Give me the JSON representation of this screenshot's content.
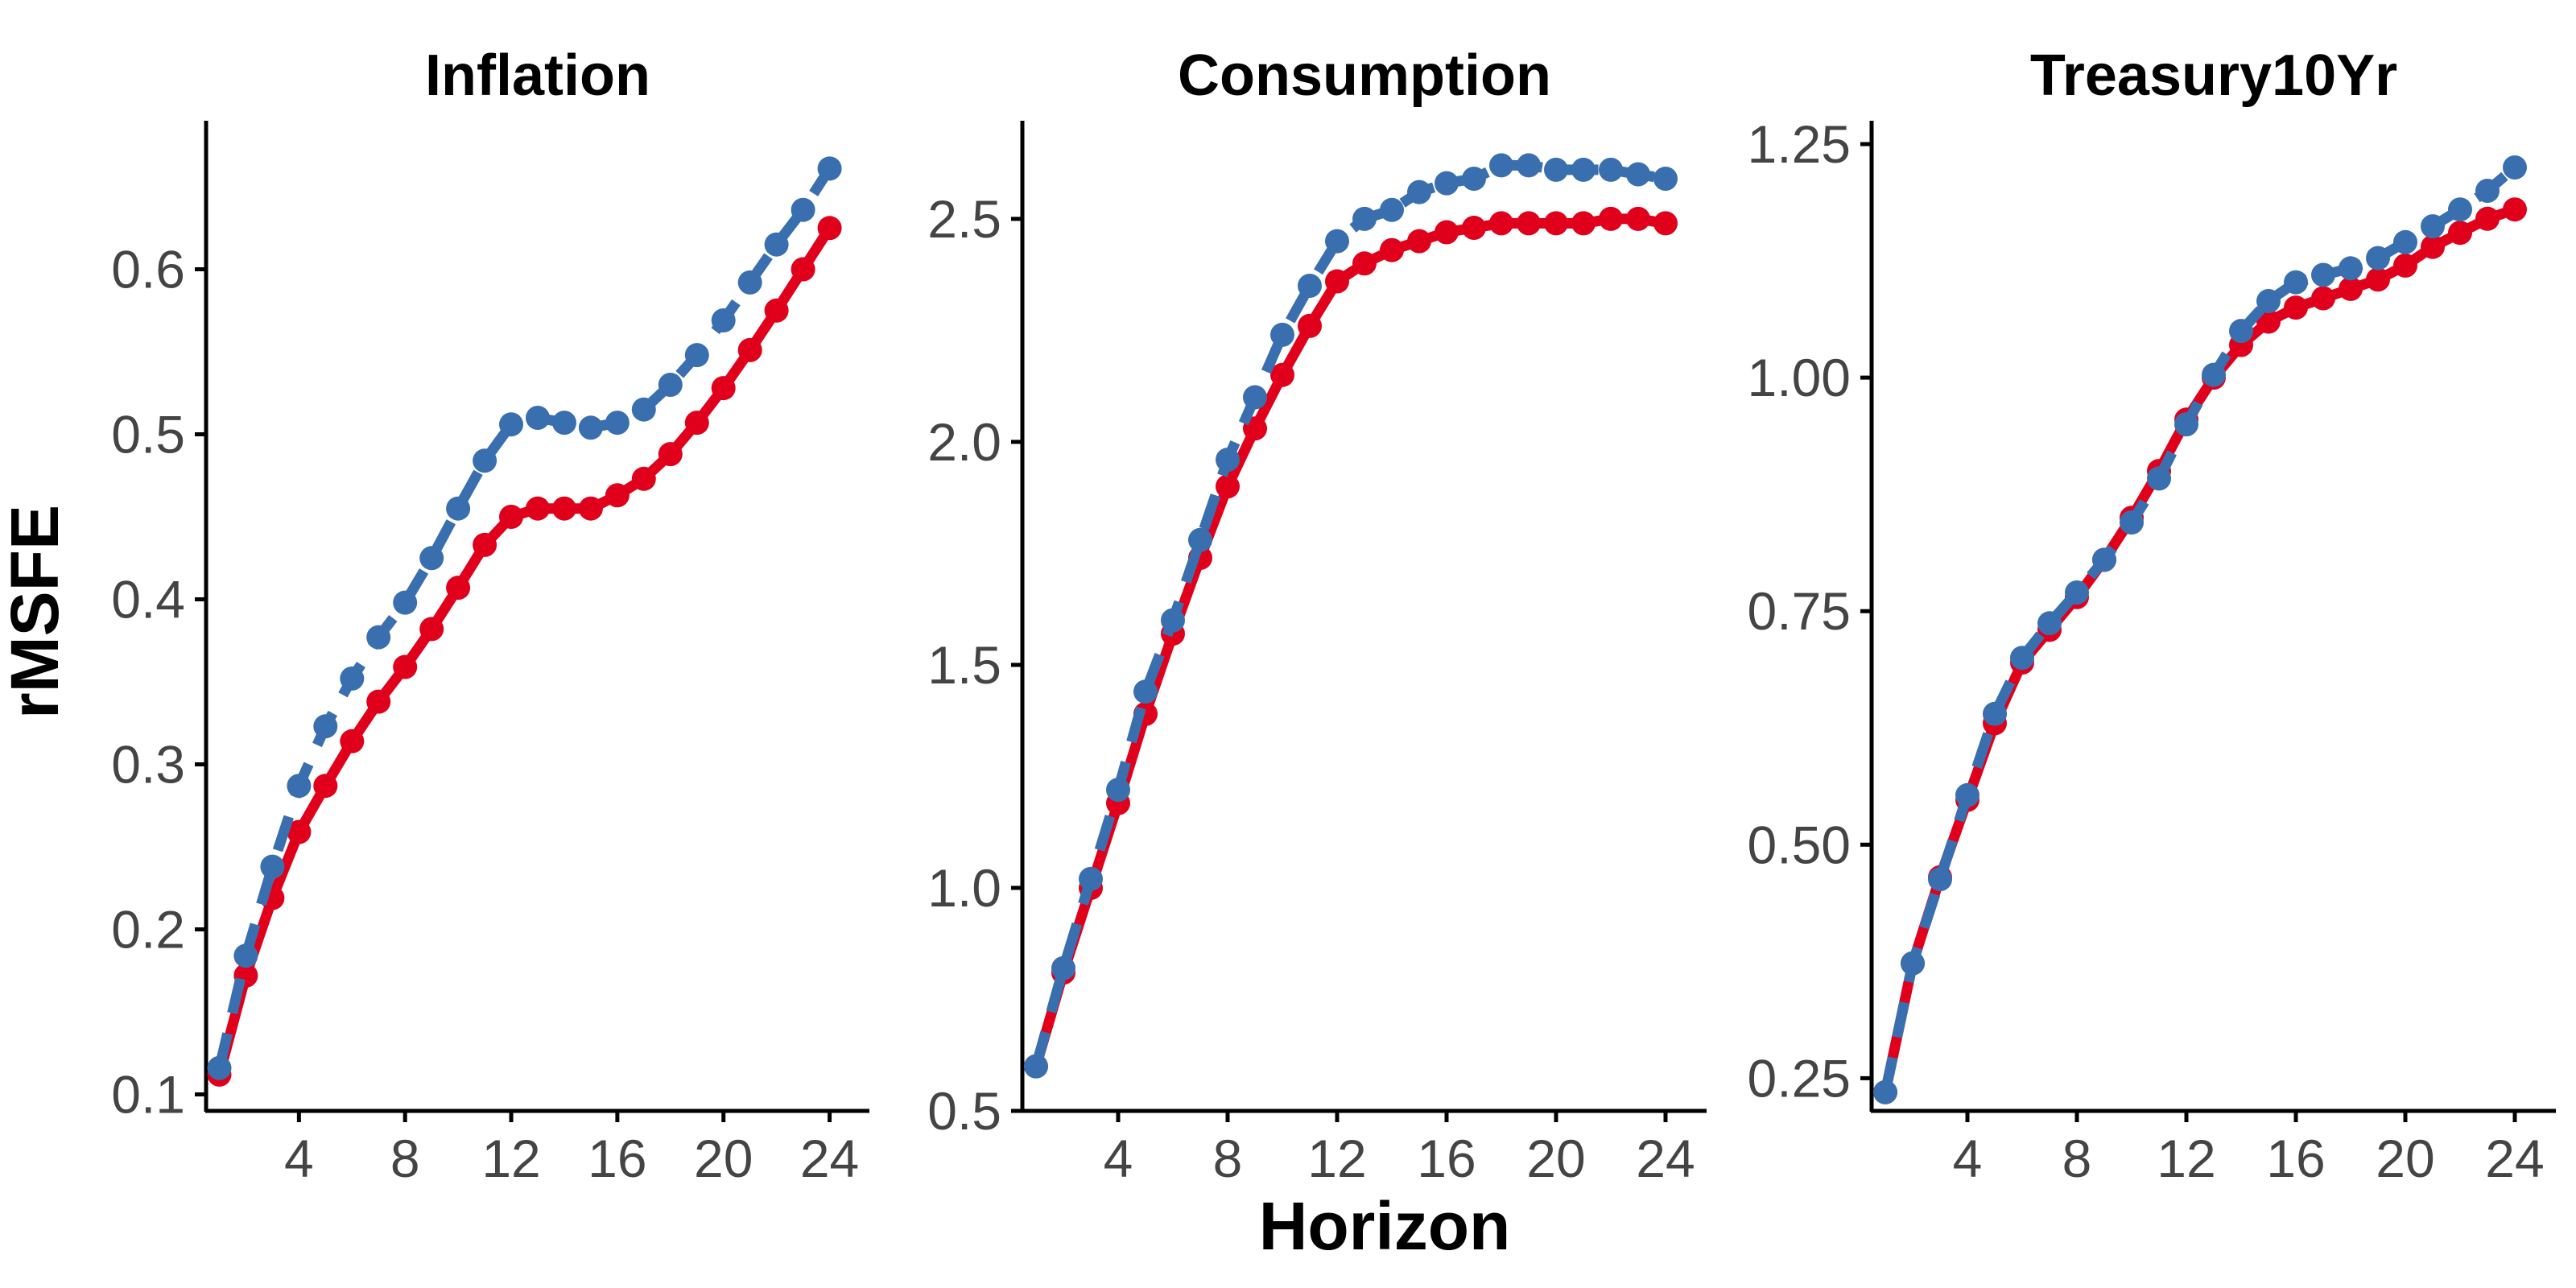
{
  "figure": {
    "ylabel": "rMSFE",
    "xlabel": "Horizon"
  },
  "colors": {
    "red": "#E0001B",
    "blue": "#3A6FAF",
    "axis": "#000000",
    "tick_text": "#444444"
  },
  "chart_data": [
    {
      "type": "line",
      "title": "Inflation",
      "xlabel": "Horizon",
      "ylabel": "rMSFE",
      "xlim": [
        0.5,
        25.5
      ],
      "ylim": [
        0.09,
        0.69
      ],
      "xticks": [
        4,
        8,
        12,
        16,
        20,
        24
      ],
      "xtick_labels": [
        "4",
        "8",
        "12",
        "16",
        "20",
        "24"
      ],
      "yticks": [
        0.1,
        0.2,
        0.3,
        0.4,
        0.5,
        0.6
      ],
      "ytick_labels": [
        "0.1",
        "0.2",
        "0.3",
        "0.4",
        "0.5",
        "0.6"
      ],
      "grid": false,
      "x": [
        1,
        2,
        3,
        4,
        5,
        6,
        7,
        8,
        9,
        10,
        11,
        12,
        13,
        14,
        15,
        16,
        17,
        18,
        19,
        20,
        21,
        22,
        23,
        24
      ],
      "series": [
        {
          "color": "#E0001B",
          "line_style": "solid",
          "values": [
            0.112,
            0.172,
            0.219,
            0.259,
            0.287,
            0.314,
            0.338,
            0.359,
            0.382,
            0.407,
            0.433,
            0.45,
            0.455,
            0.455,
            0.455,
            0.463,
            0.473,
            0.488,
            0.507,
            0.528,
            0.551,
            0.575,
            0.6,
            0.625
          ]
        },
        {
          "color": "#3A6FAF",
          "line_style": "dashed",
          "values": [
            0.116,
            0.184,
            0.238,
            0.287,
            0.323,
            0.352,
            0.377,
            0.398,
            0.425,
            0.455,
            0.484,
            0.506,
            0.51,
            0.507,
            0.504,
            0.507,
            0.515,
            0.53,
            0.548,
            0.569,
            0.592,
            0.615,
            0.636,
            0.661
          ]
        }
      ]
    },
    {
      "type": "line",
      "title": "Consumption",
      "xlabel": "Horizon",
      "ylabel": "rMSFE",
      "xlim": [
        0.5,
        25.5
      ],
      "ylim": [
        0.5,
        2.72
      ],
      "xticks": [
        4,
        8,
        12,
        16,
        20,
        24
      ],
      "xtick_labels": [
        "4",
        "8",
        "12",
        "16",
        "20",
        "24"
      ],
      "yticks": [
        0.5,
        1.0,
        1.5,
        2.0,
        2.5
      ],
      "ytick_labels": [
        "0.5",
        "1.0",
        "1.5",
        "2.0",
        "2.5"
      ],
      "grid": false,
      "x": [
        1,
        2,
        3,
        4,
        5,
        6,
        7,
        8,
        9,
        10,
        11,
        12,
        13,
        14,
        15,
        16,
        17,
        18,
        19,
        20,
        21,
        22,
        23,
        24
      ],
      "series": [
        {
          "color": "#E0001B",
          "line_style": "solid",
          "values": [
            0.6,
            0.81,
            1.0,
            1.19,
            1.39,
            1.57,
            1.74,
            1.9,
            2.03,
            2.15,
            2.26,
            2.36,
            2.4,
            2.43,
            2.45,
            2.47,
            2.48,
            2.49,
            2.49,
            2.49,
            2.49,
            2.5,
            2.5,
            2.49
          ]
        },
        {
          "color": "#3A6FAF",
          "line_style": "dashed",
          "values": [
            0.6,
            0.82,
            1.02,
            1.22,
            1.44,
            1.6,
            1.78,
            1.96,
            2.1,
            2.24,
            2.35,
            2.45,
            2.5,
            2.52,
            2.56,
            2.58,
            2.59,
            2.62,
            2.62,
            2.61,
            2.61,
            2.61,
            2.6,
            2.59
          ]
        }
      ]
    },
    {
      "type": "line",
      "title": "Treasury10Yr",
      "xlabel": "Horizon",
      "ylabel": "rMSFE",
      "xlim": [
        0.5,
        25.5
      ],
      "ylim": [
        0.215,
        1.275
      ],
      "xticks": [
        4,
        8,
        12,
        16,
        20,
        24
      ],
      "xtick_labels": [
        "4",
        "8",
        "12",
        "16",
        "20",
        "24"
      ],
      "yticks": [
        0.25,
        0.5,
        0.75,
        1.0,
        1.25
      ],
      "ytick_labels": [
        "0.25",
        "0.50",
        "0.75",
        "1.00",
        "1.25"
      ],
      "grid": false,
      "x": [
        1,
        2,
        3,
        4,
        5,
        6,
        7,
        8,
        9,
        10,
        11,
        12,
        13,
        14,
        15,
        16,
        17,
        18,
        19,
        20,
        21,
        22,
        23,
        24
      ],
      "series": [
        {
          "color": "#E0001B",
          "line_style": "solid",
          "values": [
            0.235,
            0.373,
            0.465,
            0.548,
            0.63,
            0.695,
            0.73,
            0.765,
            0.805,
            0.85,
            0.9,
            0.955,
            1.0,
            1.035,
            1.06,
            1.075,
            1.085,
            1.095,
            1.105,
            1.12,
            1.14,
            1.155,
            1.17,
            1.18
          ]
        },
        {
          "color": "#3A6FAF",
          "line_style": "dashed",
          "values": [
            0.235,
            0.373,
            0.463,
            0.553,
            0.64,
            0.7,
            0.737,
            0.77,
            0.805,
            0.845,
            0.892,
            0.95,
            1.003,
            1.05,
            1.082,
            1.102,
            1.11,
            1.117,
            1.128,
            1.145,
            1.162,
            1.18,
            1.2,
            1.225
          ]
        }
      ]
    }
  ]
}
